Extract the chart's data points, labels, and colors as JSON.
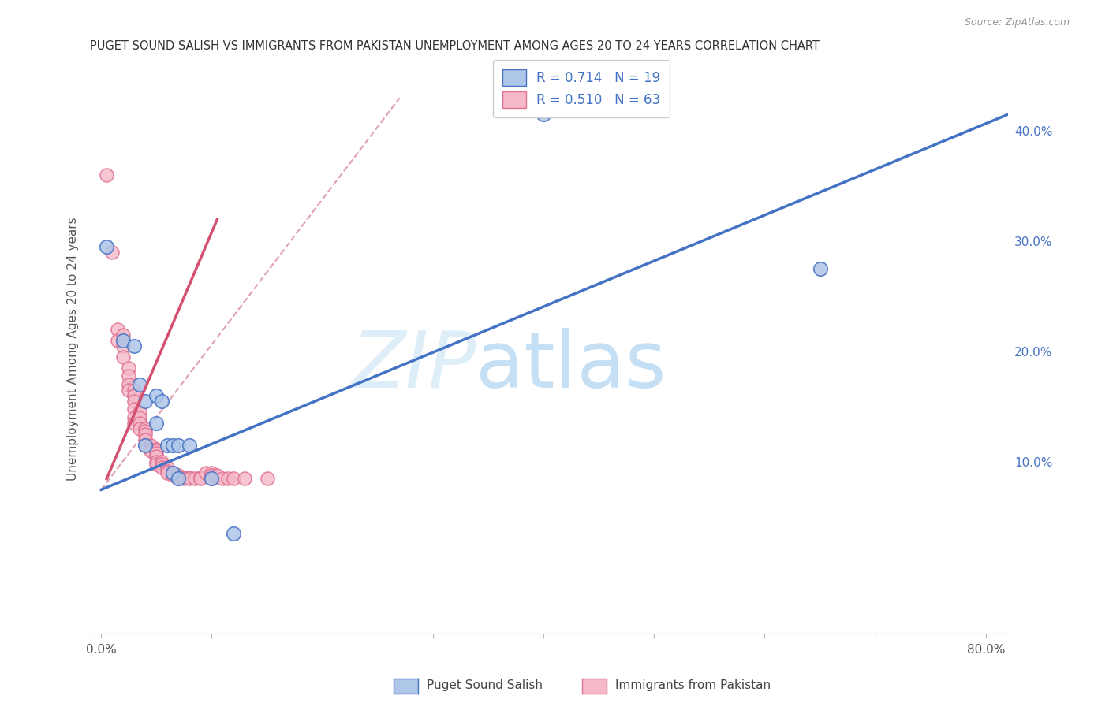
{
  "title": "PUGET SOUND SALISH VS IMMIGRANTS FROM PAKISTAN UNEMPLOYMENT AMONG AGES 20 TO 24 YEARS CORRELATION CHART",
  "source": "Source: ZipAtlas.com",
  "ylabel": "Unemployment Among Ages 20 to 24 years",
  "legend_label_blue": "Puget Sound Salish",
  "legend_label_pink": "Immigrants from Pakistan",
  "R_blue": "0.714",
  "N_blue": "19",
  "R_pink": "0.510",
  "N_pink": "63",
  "color_blue_fill": "#aec6e8",
  "color_blue_edge": "#4472c4",
  "color_pink_fill": "#f4b8c8",
  "color_pink_edge": "#e07090",
  "color_blue_line": "#4472c4",
  "color_pink_line": "#d45070",
  "color_pink_dashed": "#e0a0b0",
  "xlim": [
    -0.01,
    0.82
  ],
  "ylim": [
    -0.055,
    0.46
  ],
  "blue_scatter": [
    [
      0.005,
      0.295
    ],
    [
      0.02,
      0.21
    ],
    [
      0.03,
      0.205
    ],
    [
      0.035,
      0.17
    ],
    [
      0.04,
      0.155
    ],
    [
      0.04,
      0.115
    ],
    [
      0.05,
      0.16
    ],
    [
      0.05,
      0.135
    ],
    [
      0.055,
      0.155
    ],
    [
      0.06,
      0.115
    ],
    [
      0.065,
      0.115
    ],
    [
      0.07,
      0.115
    ],
    [
      0.065,
      0.09
    ],
    [
      0.07,
      0.085
    ],
    [
      0.08,
      0.115
    ],
    [
      0.1,
      0.085
    ],
    [
      0.12,
      0.035
    ],
    [
      0.4,
      0.415
    ],
    [
      0.65,
      0.275
    ]
  ],
  "pink_scatter": [
    [
      0.005,
      0.36
    ],
    [
      0.01,
      0.29
    ],
    [
      0.015,
      0.22
    ],
    [
      0.015,
      0.21
    ],
    [
      0.02,
      0.215
    ],
    [
      0.02,
      0.205
    ],
    [
      0.02,
      0.195
    ],
    [
      0.025,
      0.185
    ],
    [
      0.025,
      0.178
    ],
    [
      0.025,
      0.17
    ],
    [
      0.025,
      0.165
    ],
    [
      0.03,
      0.165
    ],
    [
      0.03,
      0.16
    ],
    [
      0.03,
      0.155
    ],
    [
      0.03,
      0.148
    ],
    [
      0.03,
      0.14
    ],
    [
      0.03,
      0.135
    ],
    [
      0.035,
      0.145
    ],
    [
      0.035,
      0.14
    ],
    [
      0.035,
      0.135
    ],
    [
      0.035,
      0.13
    ],
    [
      0.04,
      0.13
    ],
    [
      0.04,
      0.128
    ],
    [
      0.04,
      0.125
    ],
    [
      0.04,
      0.12
    ],
    [
      0.04,
      0.115
    ],
    [
      0.045,
      0.115
    ],
    [
      0.045,
      0.112
    ],
    [
      0.045,
      0.11
    ],
    [
      0.05,
      0.112
    ],
    [
      0.05,
      0.11
    ],
    [
      0.05,
      0.108
    ],
    [
      0.05,
      0.105
    ],
    [
      0.05,
      0.1
    ],
    [
      0.05,
      0.098
    ],
    [
      0.055,
      0.1
    ],
    [
      0.055,
      0.098
    ],
    [
      0.055,
      0.095
    ],
    [
      0.06,
      0.095
    ],
    [
      0.06,
      0.092
    ],
    [
      0.06,
      0.09
    ],
    [
      0.065,
      0.09
    ],
    [
      0.065,
      0.088
    ],
    [
      0.07,
      0.088
    ],
    [
      0.07,
      0.086
    ],
    [
      0.07,
      0.085
    ],
    [
      0.075,
      0.086
    ],
    [
      0.075,
      0.085
    ],
    [
      0.08,
      0.086
    ],
    [
      0.08,
      0.085
    ],
    [
      0.085,
      0.085
    ],
    [
      0.09,
      0.086
    ],
    [
      0.09,
      0.085
    ],
    [
      0.095,
      0.09
    ],
    [
      0.1,
      0.09
    ],
    [
      0.1,
      0.088
    ],
    [
      0.1,
      0.085
    ],
    [
      0.105,
      0.088
    ],
    [
      0.11,
      0.085
    ],
    [
      0.115,
      0.085
    ],
    [
      0.12,
      0.085
    ],
    [
      0.13,
      0.085
    ],
    [
      0.15,
      0.085
    ]
  ],
  "blue_line": {
    "x0": 0.0,
    "x1": 0.82,
    "y0": 0.075,
    "y1": 0.415
  },
  "pink_line_solid": {
    "x0": 0.005,
    "x1": 0.105,
    "y0": 0.085,
    "y1": 0.32
  },
  "pink_line_dashed": {
    "x0": 0.0,
    "x1": 0.27,
    "y0": 0.075,
    "y1": 0.43
  }
}
